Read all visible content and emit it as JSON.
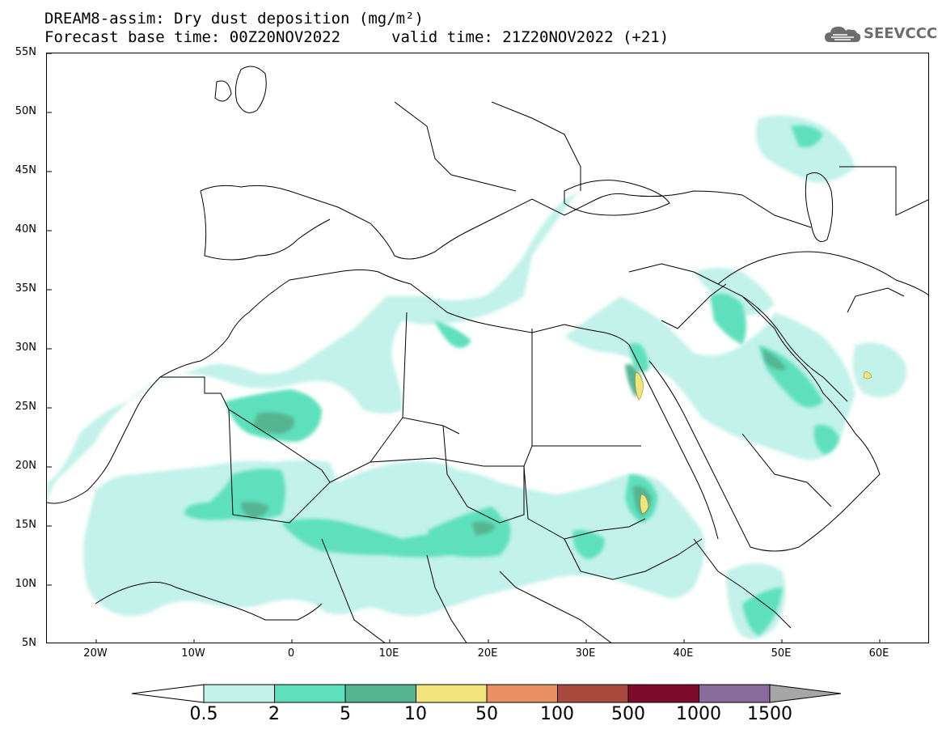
{
  "title": {
    "line1": "DREAM8-assim: Dry dust deposition (mg/m²)",
    "line2_left": "Forecast base time: 00Z20NOV2022",
    "line2_right": "valid time: 21Z20NOV2022 (+21)"
  },
  "logo": {
    "text": "SEEVCCC",
    "icon": "cloud-logo-icon"
  },
  "map": {
    "projection": "lat-lon",
    "lon_range": [
      -25,
      65
    ],
    "lat_range": [
      5,
      55
    ],
    "lat_ticks": [
      "55N",
      "50N",
      "45N",
      "40N",
      "35N",
      "30N",
      "25N",
      "20N",
      "15N",
      "10N",
      "5N"
    ],
    "lon_ticks": [
      "20W",
      "10W",
      "0",
      "10E",
      "20E",
      "30E",
      "40E",
      "50E",
      "60E"
    ]
  },
  "colorbar": {
    "labels": [
      "0.5",
      "2",
      "5",
      "10",
      "50",
      "100",
      "500",
      "1000",
      "1500"
    ],
    "colors": [
      "#c2f2e9",
      "#5ee0bd",
      "#54b592",
      "#f1e47a",
      "#ea8f64",
      "#aa4a3e",
      "#7e0b2b",
      "#8a6b9d",
      "#a6a6a6"
    ]
  }
}
